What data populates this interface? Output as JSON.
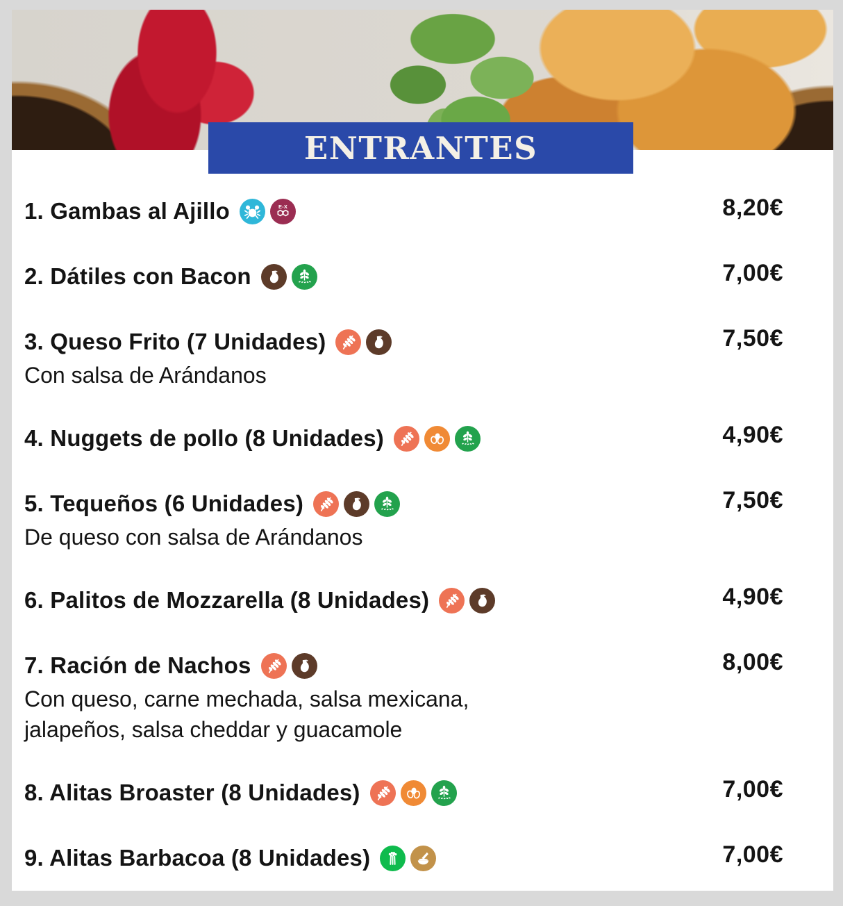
{
  "theme": {
    "page_bg": "#d9d9d9",
    "card_bg": "#ffffff",
    "banner_bg": "#2a49a9",
    "banner_fg": "#f4f0e6",
    "text": "#141414"
  },
  "banner": {
    "label": "ENTRANTES"
  },
  "allergen_icons": {
    "crustaceans": {
      "icon": "crab-icon",
      "color": "#2fb7d9"
    },
    "sulphites": {
      "icon": "sulphites-icon",
      "color": "#9b2d52",
      "text": "E-X"
    },
    "gluten": {
      "icon": "wheat-icon",
      "color": "#ee7355"
    },
    "milk": {
      "icon": "milk-jug-icon",
      "color": "#5d3b29"
    },
    "egg": {
      "icon": "eggs-icon",
      "color": "#f08a35"
    },
    "sesame": {
      "icon": "sesame-leaf-icon",
      "color": "#23a24d"
    },
    "celery": {
      "icon": "celery-icon",
      "color": "#0fbb4d"
    },
    "mustard": {
      "icon": "mortar-pestle-icon",
      "color": "#c2924a"
    }
  },
  "menu": {
    "items": [
      {
        "title": "1. Gambas al Ajillo",
        "price": "8,20€",
        "description_lines": [],
        "allergens": [
          "crustaceans",
          "sulphites"
        ]
      },
      {
        "title": "2. Dátiles con Bacon",
        "price": "7,00€",
        "description_lines": [],
        "allergens": [
          "milk",
          "sesame"
        ]
      },
      {
        "title": "3. Queso Frito (7 Unidades)",
        "price": "7,50€",
        "description_lines": [
          "Con salsa de Arándanos"
        ],
        "allergens": [
          "gluten",
          "milk"
        ]
      },
      {
        "title": "4. Nuggets de pollo (8 Unidades)",
        "price": "4,90€",
        "description_lines": [],
        "allergens": [
          "gluten",
          "egg",
          "sesame"
        ]
      },
      {
        "title": "5. Tequeños (6 Unidades)",
        "price": "7,50€",
        "description_lines": [
          "De queso con salsa de Arándanos"
        ],
        "allergens": [
          "gluten",
          "milk",
          "sesame"
        ]
      },
      {
        "title": "6. Palitos de Mozzarella (8 Unidades)",
        "price": "4,90€",
        "description_lines": [],
        "allergens": [
          "gluten",
          "milk"
        ]
      },
      {
        "title": "7. Ración de Nachos",
        "price": "8,00€",
        "description_lines": [
          "Con queso, carne mechada, salsa mexicana,",
          "jalapeños, salsa cheddar y guacamole"
        ],
        "allergens": [
          "gluten",
          "milk"
        ]
      },
      {
        "title": "8. Alitas Broaster (8 Unidades)",
        "price": "7,00€",
        "description_lines": [],
        "allergens": [
          "gluten",
          "egg",
          "sesame"
        ]
      },
      {
        "title": "9. Alitas Barbacoa (8 Unidades)",
        "price": "7,00€",
        "description_lines": [],
        "allergens": [
          "celery",
          "mustard"
        ]
      }
    ]
  }
}
